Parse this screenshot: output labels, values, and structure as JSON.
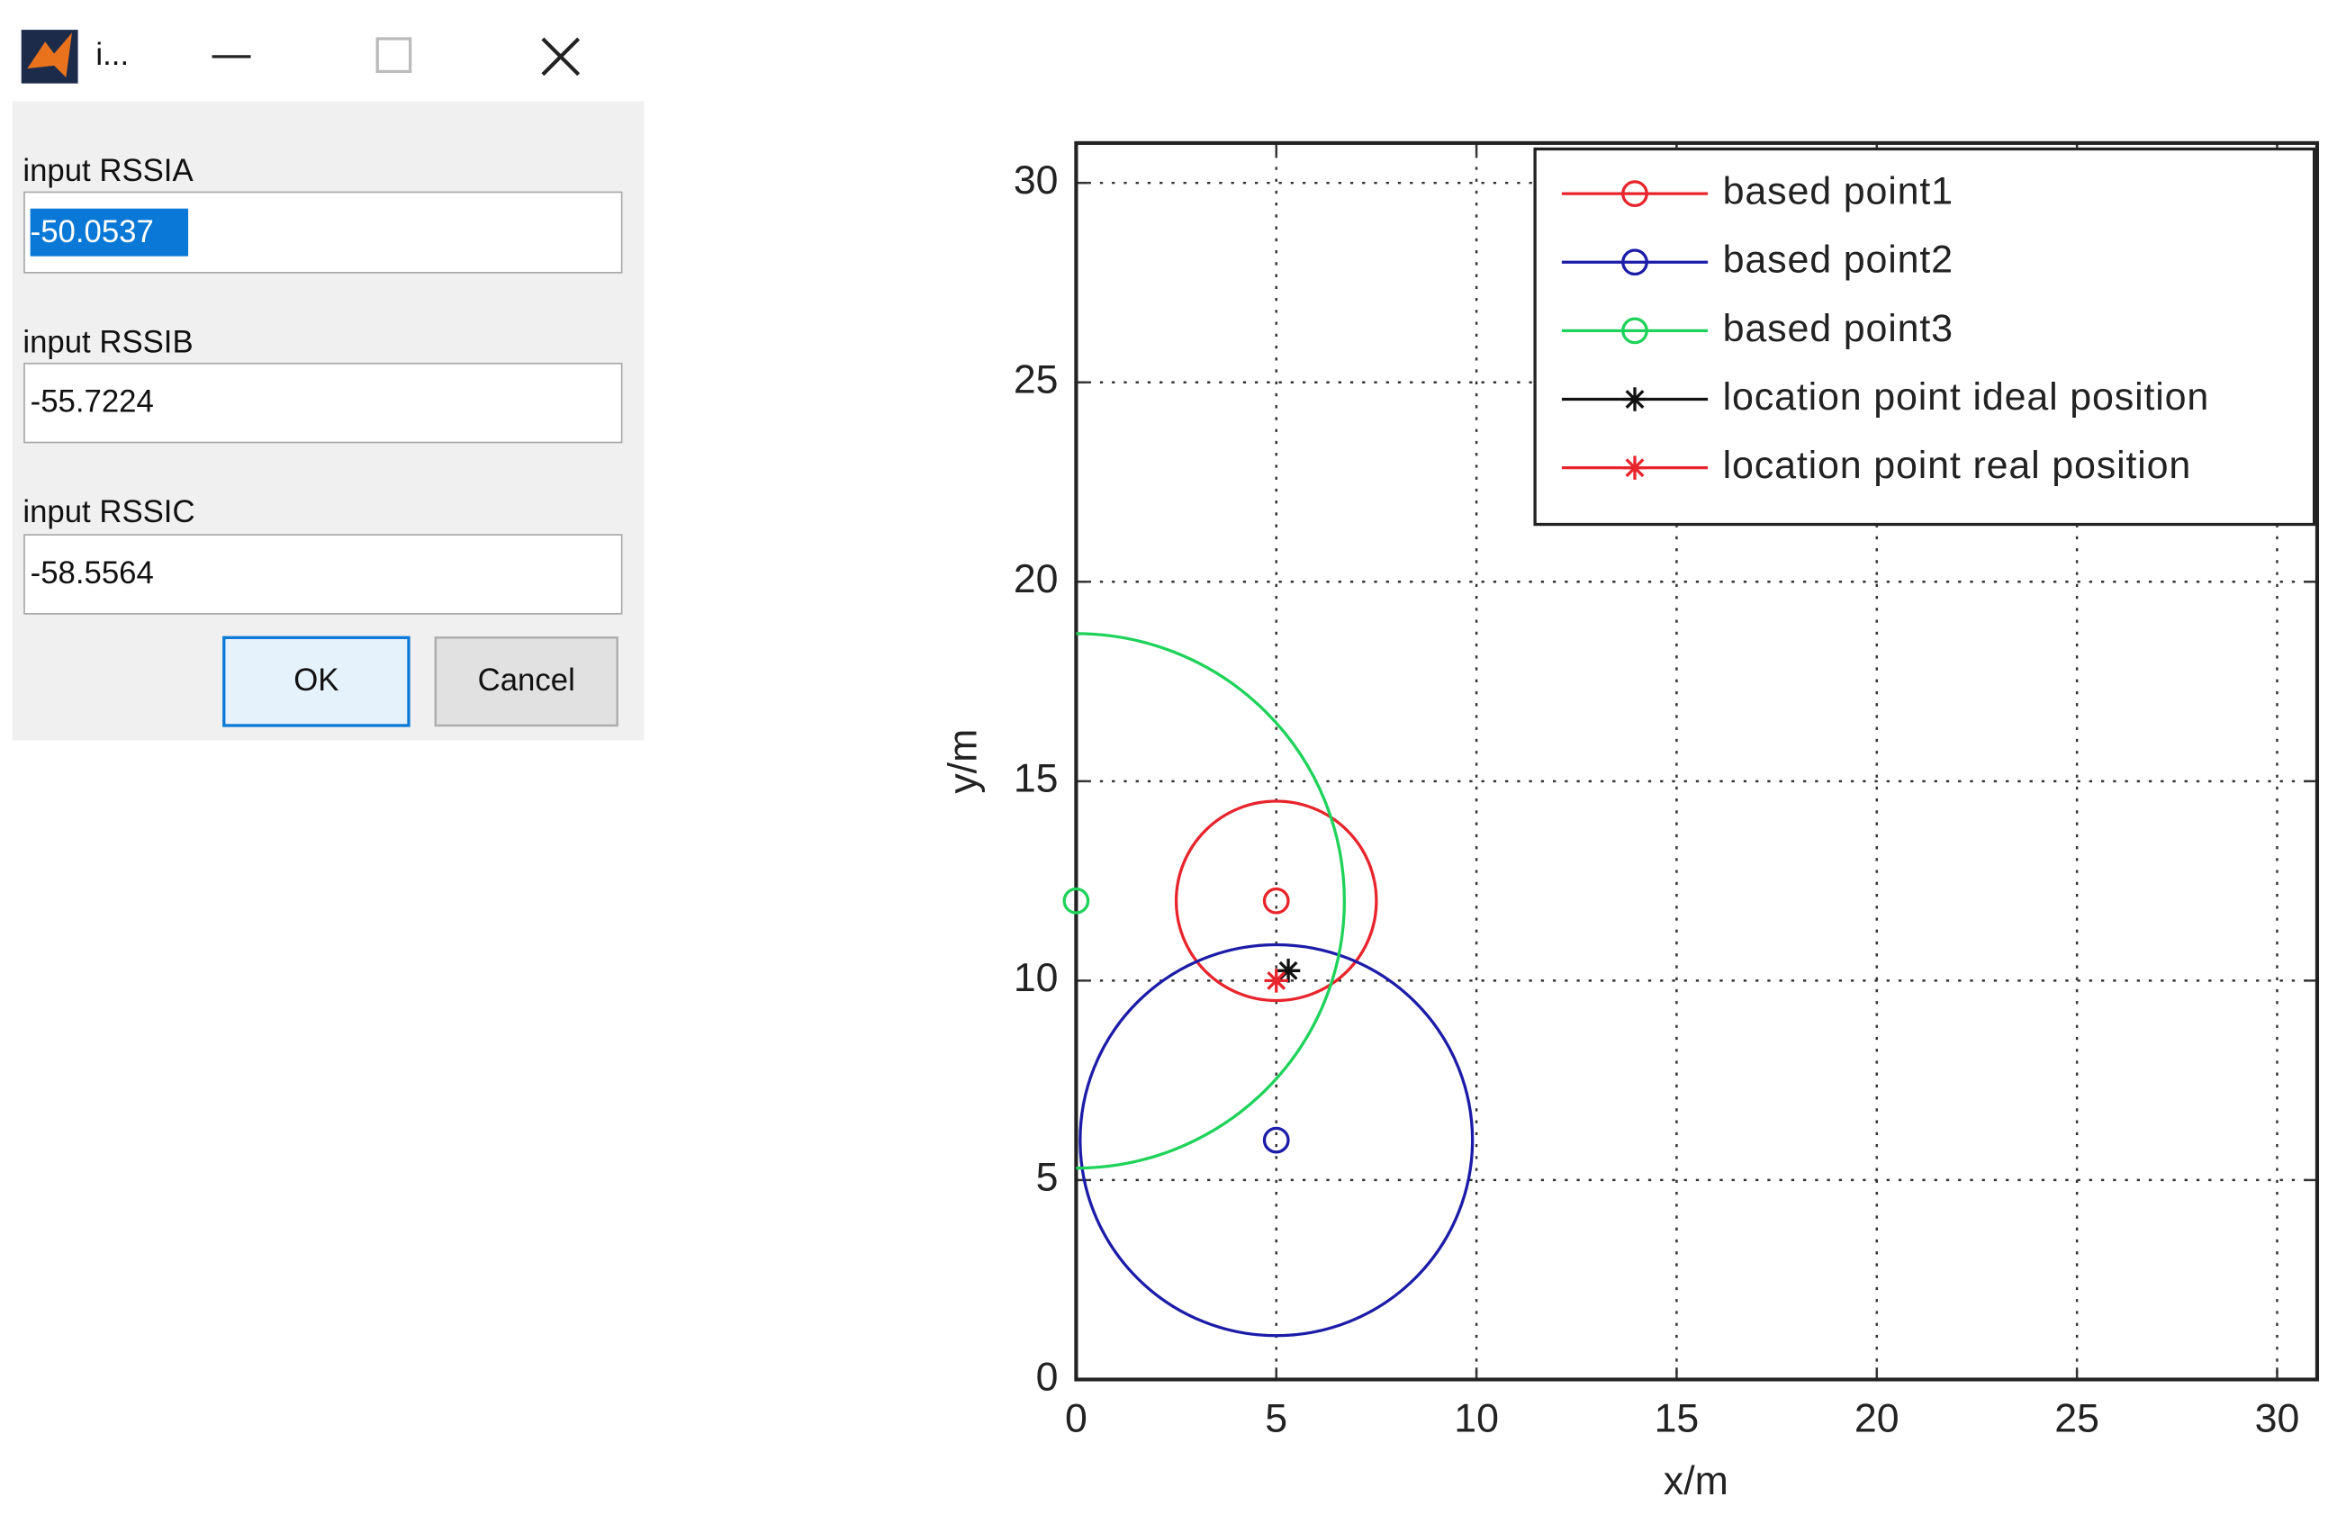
{
  "window": {
    "title": "i..."
  },
  "dialog": {
    "fields": [
      {
        "label": "input RSSIA",
        "value": "-50.0537"
      },
      {
        "label": "input RSSIB",
        "value": "-55.7224"
      },
      {
        "label": "input RSSIC",
        "value": "-58.5564"
      }
    ],
    "buttons": {
      "ok": "OK",
      "cancel": "Cancel"
    }
  },
  "chart_data": {
    "type": "scatter",
    "xlabel": "x/m",
    "ylabel": "y/m",
    "xlim": [
      0,
      31
    ],
    "ylim": [
      0,
      31
    ],
    "xticks": [
      0,
      5,
      10,
      15,
      20,
      25,
      30
    ],
    "yticks": [
      0,
      5,
      10,
      15,
      20,
      25,
      30
    ],
    "grid": true,
    "legend": "upper right",
    "series": [
      {
        "name": "based point1",
        "color": "#e8242c",
        "marker": "o",
        "x": [
          5
        ],
        "values": [
          12
        ],
        "radius": [
          2.5
        ]
      },
      {
        "name": "based point2",
        "color": "#1c1ca8",
        "marker": "o",
        "x": [
          5
        ],
        "values": [
          6
        ],
        "radius": [
          4.9
        ]
      },
      {
        "name": "based point3",
        "color": "#1ed25a",
        "marker": "o",
        "x": [
          0
        ],
        "values": [
          12
        ],
        "radius": [
          6.7
        ]
      },
      {
        "name": "location point ideal position",
        "color": "#111111",
        "marker": "*",
        "x": [
          5.3
        ],
        "values": [
          10.25
        ]
      },
      {
        "name": "location point real position",
        "color": "#e8242c",
        "marker": "*",
        "x": [
          5
        ],
        "values": [
          10
        ]
      }
    ]
  }
}
